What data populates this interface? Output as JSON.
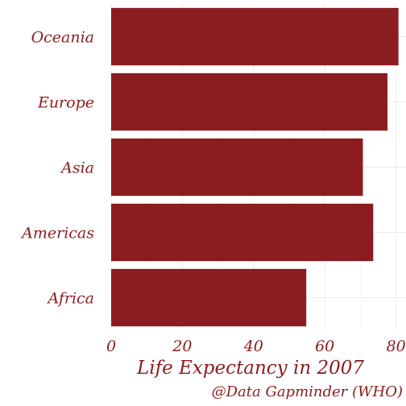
{
  "chart_data": {
    "type": "bar",
    "orientation": "horizontal",
    "categories": [
      "Africa",
      "Americas",
      "Asia",
      "Europe",
      "Oceania"
    ],
    "values": [
      54.8,
      73.6,
      70.7,
      77.6,
      80.7
    ],
    "xlabel": "Life Expectancy in 2007",
    "ylabel": "",
    "xlim": [
      0,
      80
    ],
    "xticks": [
      "0",
      "20",
      "40",
      "60",
      "80"
    ],
    "caption": "@Data Gapminder (WHO)",
    "grid": true,
    "legend": "none",
    "colors": {
      "bar": "#8b1c1f",
      "text": "#8b1c1f",
      "grid": "#ebebeb",
      "background": "#ffffff"
    }
  }
}
